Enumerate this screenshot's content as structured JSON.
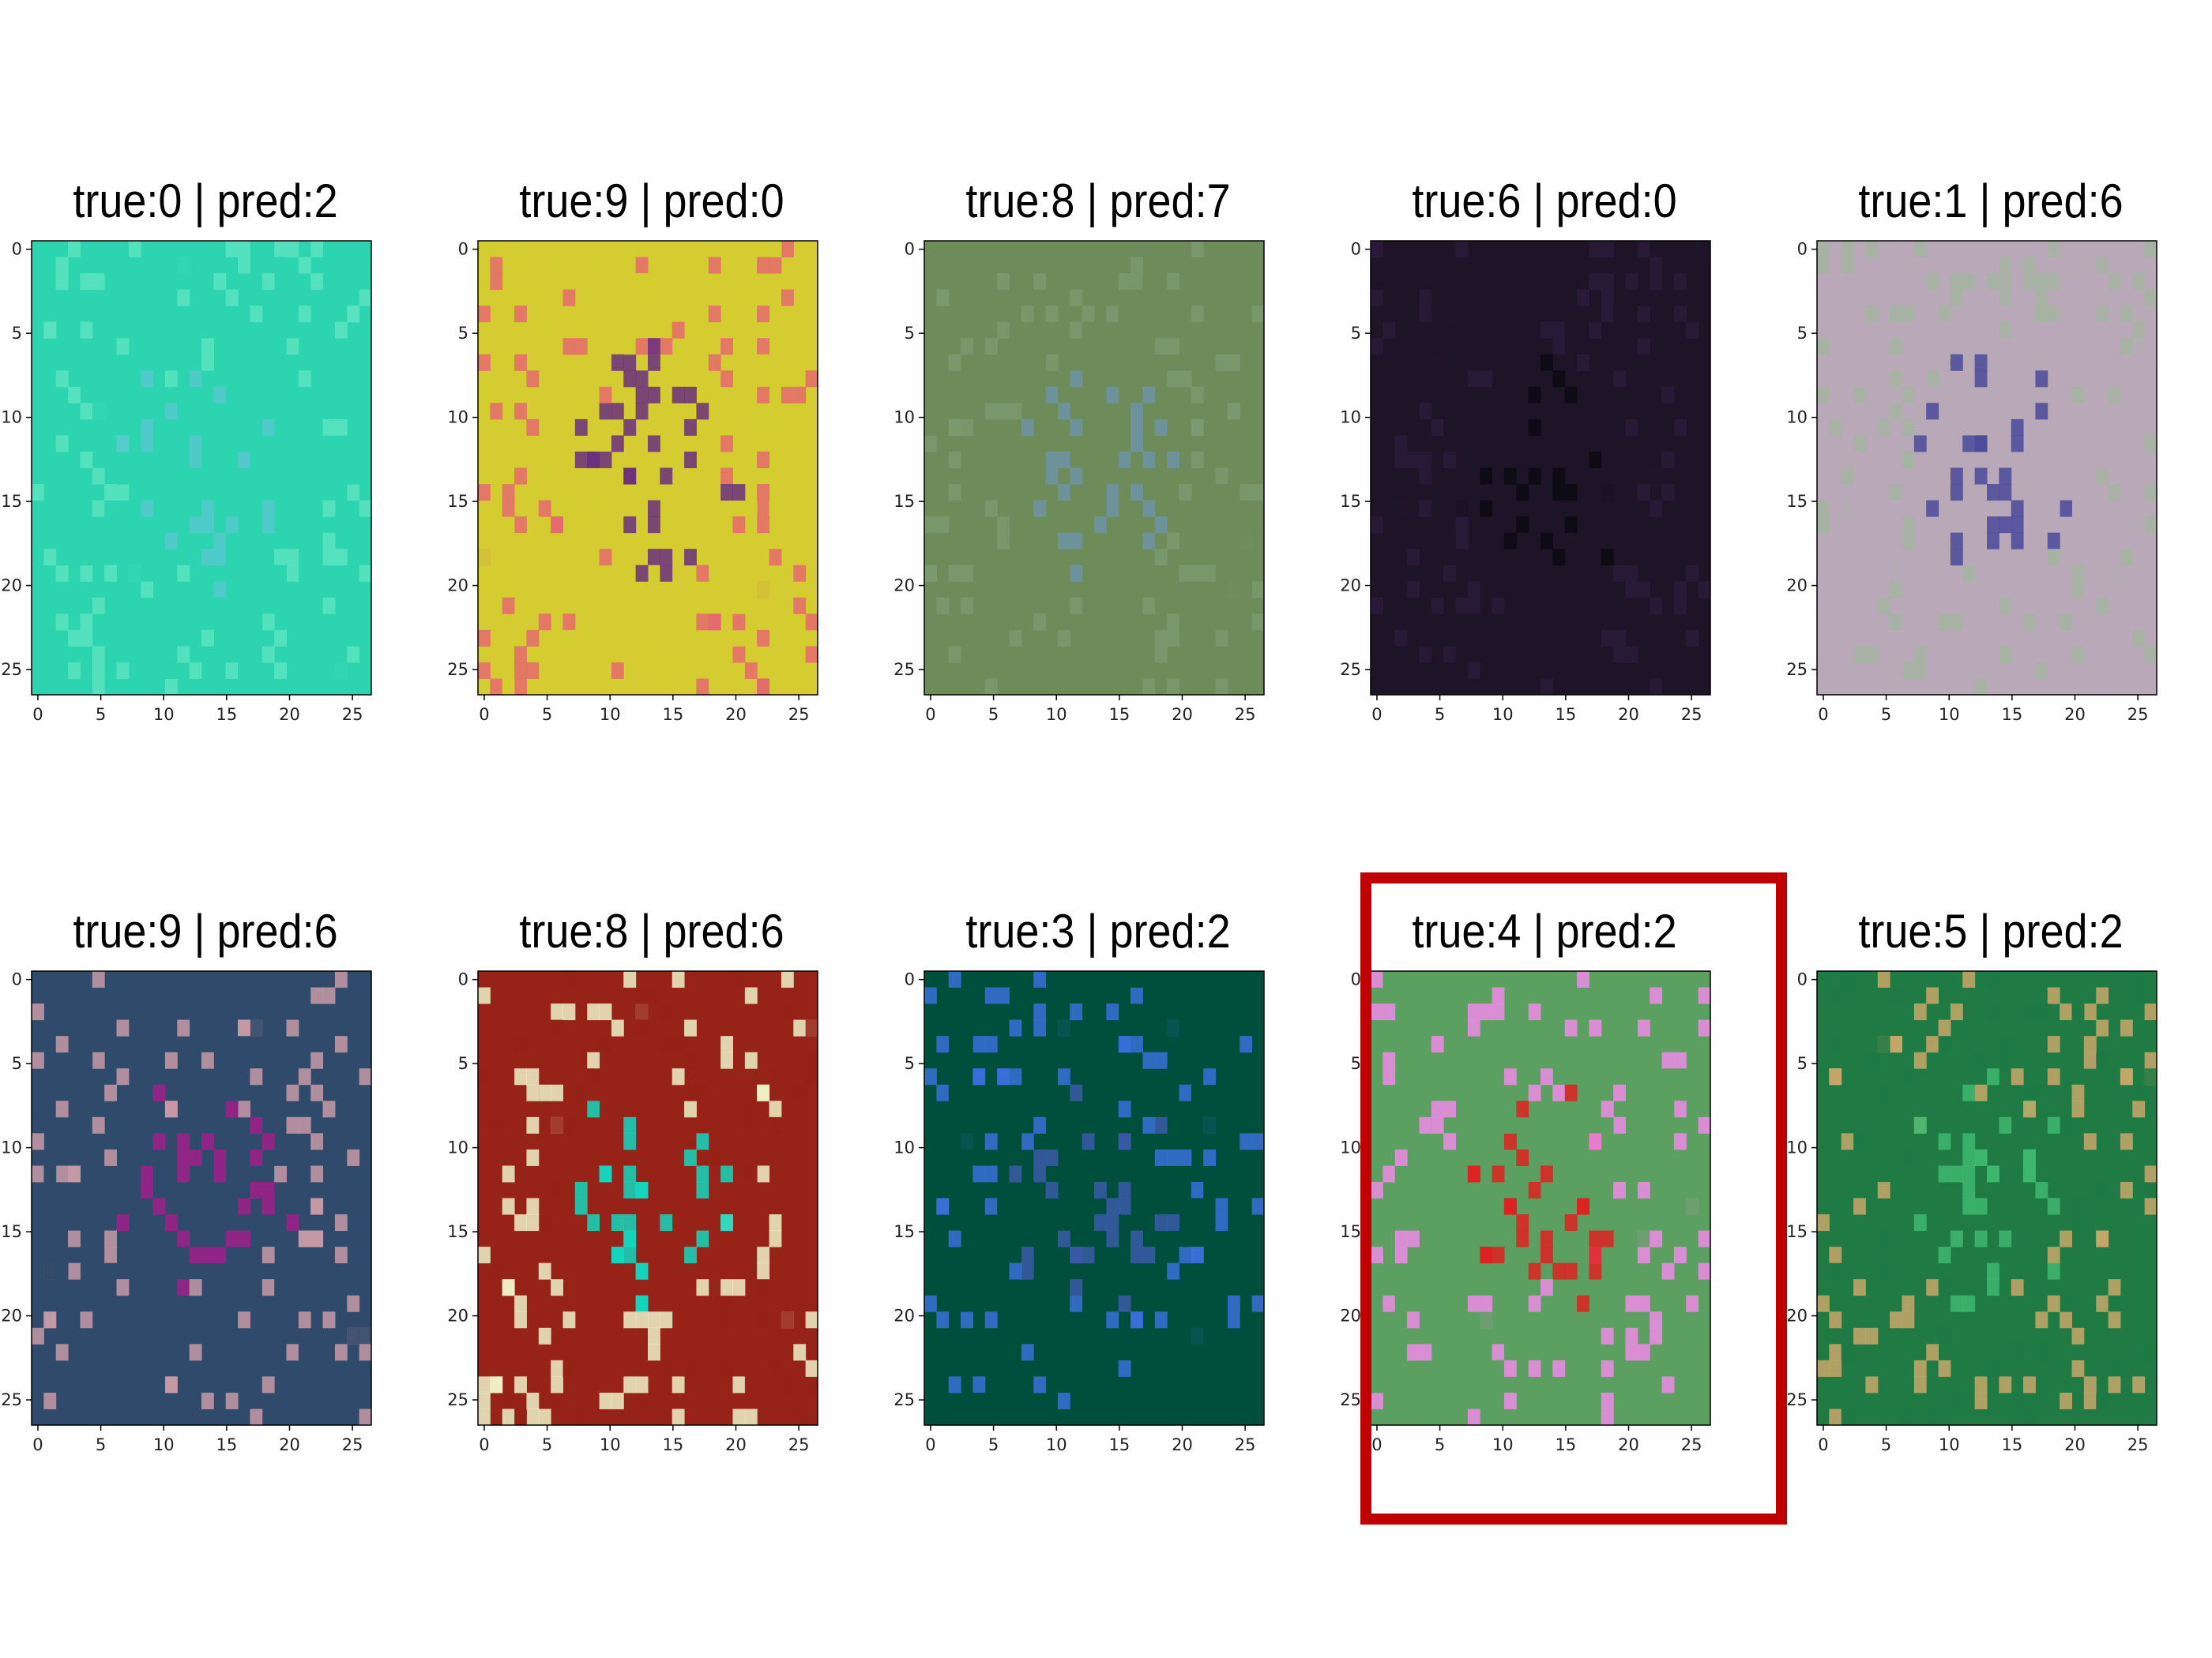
{
  "chart_data": {
    "type": "image-grid",
    "title": "",
    "highlight_color": "#c00000",
    "highlighted_panel": 8,
    "axis": {
      "xlim": [
        0,
        27
      ],
      "ylim": [
        27,
        0
      ],
      "xticks": [
        0,
        5,
        10,
        15,
        20,
        25
      ],
      "yticks": [
        0,
        5,
        10,
        15,
        20,
        25
      ]
    },
    "panels": [
      {
        "title": "true:0 | pred:2",
        "true": 0,
        "pred": 2,
        "bg": "#2dd4b0",
        "accent": "#5ce3c0",
        "detail": "#55c8cc"
      },
      {
        "title": "true:9 | pred:0",
        "true": 9,
        "pred": 0,
        "bg": "#d4cc30",
        "accent": "#e56a6e",
        "detail": "#6a2f80"
      },
      {
        "title": "true:8 | pred:7",
        "true": 8,
        "pred": 7,
        "bg": "#6e8c5a",
        "accent": "#7a9a70",
        "detail": "#6f93a6"
      },
      {
        "title": "true:6 | pred:0",
        "true": 6,
        "pred": 0,
        "bg": "#1e1428",
        "accent": "#2a1a3a",
        "detail": "#0a0a12"
      },
      {
        "title": "true:1 | pred:6",
        "true": 1,
        "pred": 6,
        "bg": "#b8a8b8",
        "accent": "#a4b4a0",
        "detail": "#4a4a9a"
      },
      {
        "title": "true:9 | pred:6",
        "true": 9,
        "pred": 6,
        "bg": "#2f4a6a",
        "accent": "#c89aa6",
        "detail": "#a0208a"
      },
      {
        "title": "true:8 | pred:6",
        "true": 8,
        "pred": 6,
        "bg": "#962218",
        "accent": "#eef2c8",
        "detail": "#12d8c0"
      },
      {
        "title": "true:3 | pred:2",
        "true": 3,
        "pred": 2,
        "bg": "#004f3c",
        "accent": "#3a6fd8",
        "detail": "#3a5aa8"
      },
      {
        "title": "true:4 | pred:2",
        "true": 4,
        "pred": 2,
        "bg": "#5ba060",
        "accent": "#f08ae8",
        "detail": "#e02020"
      },
      {
        "title": "true:5 | pred:2",
        "true": 5,
        "pred": 2,
        "bg": "#1f7a44",
        "accent": "#c8a868",
        "detail": "#3fb870"
      }
    ]
  }
}
